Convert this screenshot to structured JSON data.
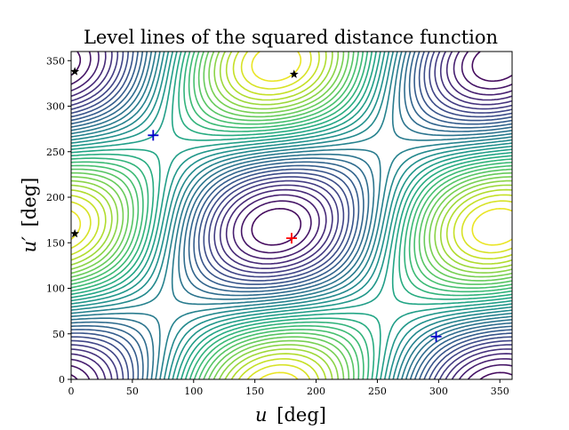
{
  "chart_data": {
    "type": "contour",
    "title": "Level lines of the squared distance function",
    "xlabel_var": "u",
    "xlabel_unit": "[deg]",
    "ylabel_var": "u′",
    "ylabel_unit": "[deg]",
    "xlim": [
      0,
      360
    ],
    "ylim": [
      0,
      360
    ],
    "xticks": [
      "0",
      "50",
      "100",
      "150",
      "200",
      "250",
      "300",
      "350"
    ],
    "yticks": [
      "0",
      "50",
      "100",
      "150",
      "200",
      "250",
      "300",
      "350"
    ],
    "xtick_values": [
      0,
      50,
      100,
      150,
      200,
      250,
      300,
      350
    ],
    "ytick_values": [
      0,
      50,
      100,
      150,
      200,
      250,
      300,
      350
    ],
    "colormap": "viridis",
    "grid": false,
    "markers": {
      "maximum": [
        {
          "u": 180,
          "u_prime": 155,
          "marker": "plus",
          "color": "#ff0000"
        }
      ],
      "minima": [
        {
          "u": 67,
          "u_prime": 268,
          "marker": "plus",
          "color": "#0000cc"
        },
        {
          "u": 298,
          "u_prime": 47,
          "marker": "plus",
          "color": "#0000cc"
        }
      ],
      "saddles": [
        {
          "u": 3,
          "u_prime": 338,
          "marker": "star",
          "color": "#000000"
        },
        {
          "u": 3,
          "u_prime": 160,
          "marker": "star",
          "color": "#000000"
        },
        {
          "u": 182,
          "u_prime": 335,
          "marker": "star",
          "color": "#000000"
        }
      ]
    }
  }
}
